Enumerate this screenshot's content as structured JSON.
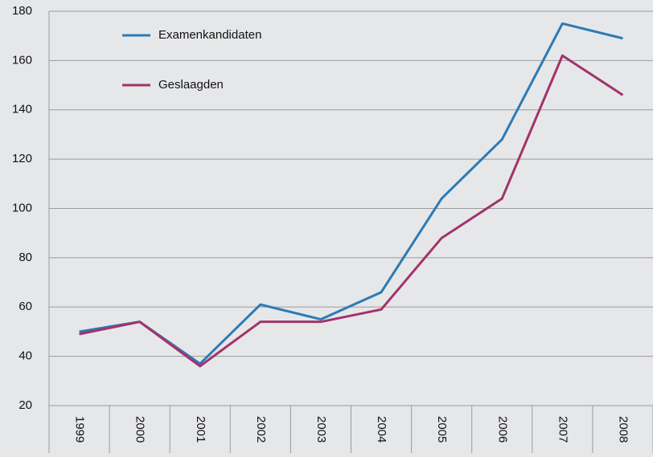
{
  "chart_data": {
    "type": "line",
    "categories": [
      "1999",
      "2000",
      "2001",
      "2002",
      "2003",
      "2004",
      "2005",
      "2006",
      "2007",
      "2008"
    ],
    "series": [
      {
        "name": "Examenkandidaten",
        "color": "#2b7bb6",
        "values": [
          50,
          54,
          37,
          61,
          55,
          66,
          104,
          128,
          175,
          169
        ]
      },
      {
        "name": "Geslaagden",
        "color": "#a2336b",
        "values": [
          49,
          54,
          36,
          54,
          54,
          59,
          88,
          104,
          162,
          146
        ]
      }
    ],
    "ylim": [
      20,
      180
    ],
    "yticks": [
      20,
      40,
      60,
      80,
      100,
      120,
      140,
      160,
      180
    ],
    "grid": true
  }
}
